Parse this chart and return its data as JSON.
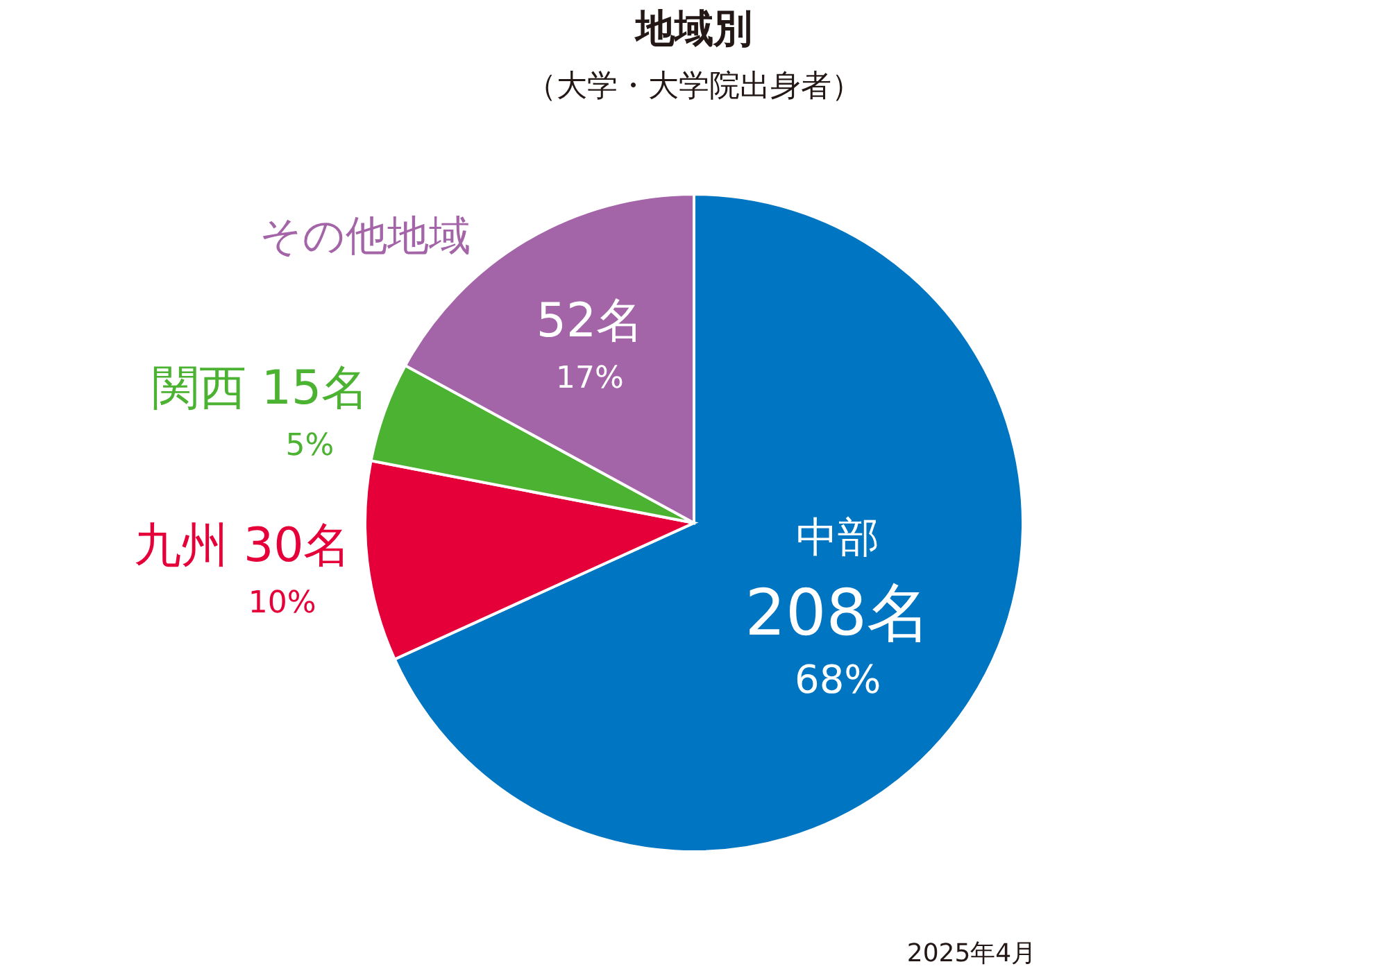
{
  "chart_data": {
    "type": "pie",
    "title": "地域別",
    "subtitle": "（大学・大学院出身者）",
    "categories": [
      "中部",
      "九州",
      "関西",
      "その他地域"
    ],
    "values": [
      208,
      30,
      15,
      52
    ],
    "colors": [
      "#0075c2",
      "#e60039",
      "#4bb232",
      "#a464a8"
    ],
    "value_labels": [
      "208名",
      "30名",
      "15名",
      "52名"
    ],
    "annotations": [
      {
        "text": "68%",
        "x": "中部"
      },
      {
        "text": "10%",
        "x": "九州"
      },
      {
        "text": "5%",
        "x": "関西"
      },
      {
        "text": "17%",
        "x": "その他地域"
      },
      "2025年4月"
    ]
  }
}
